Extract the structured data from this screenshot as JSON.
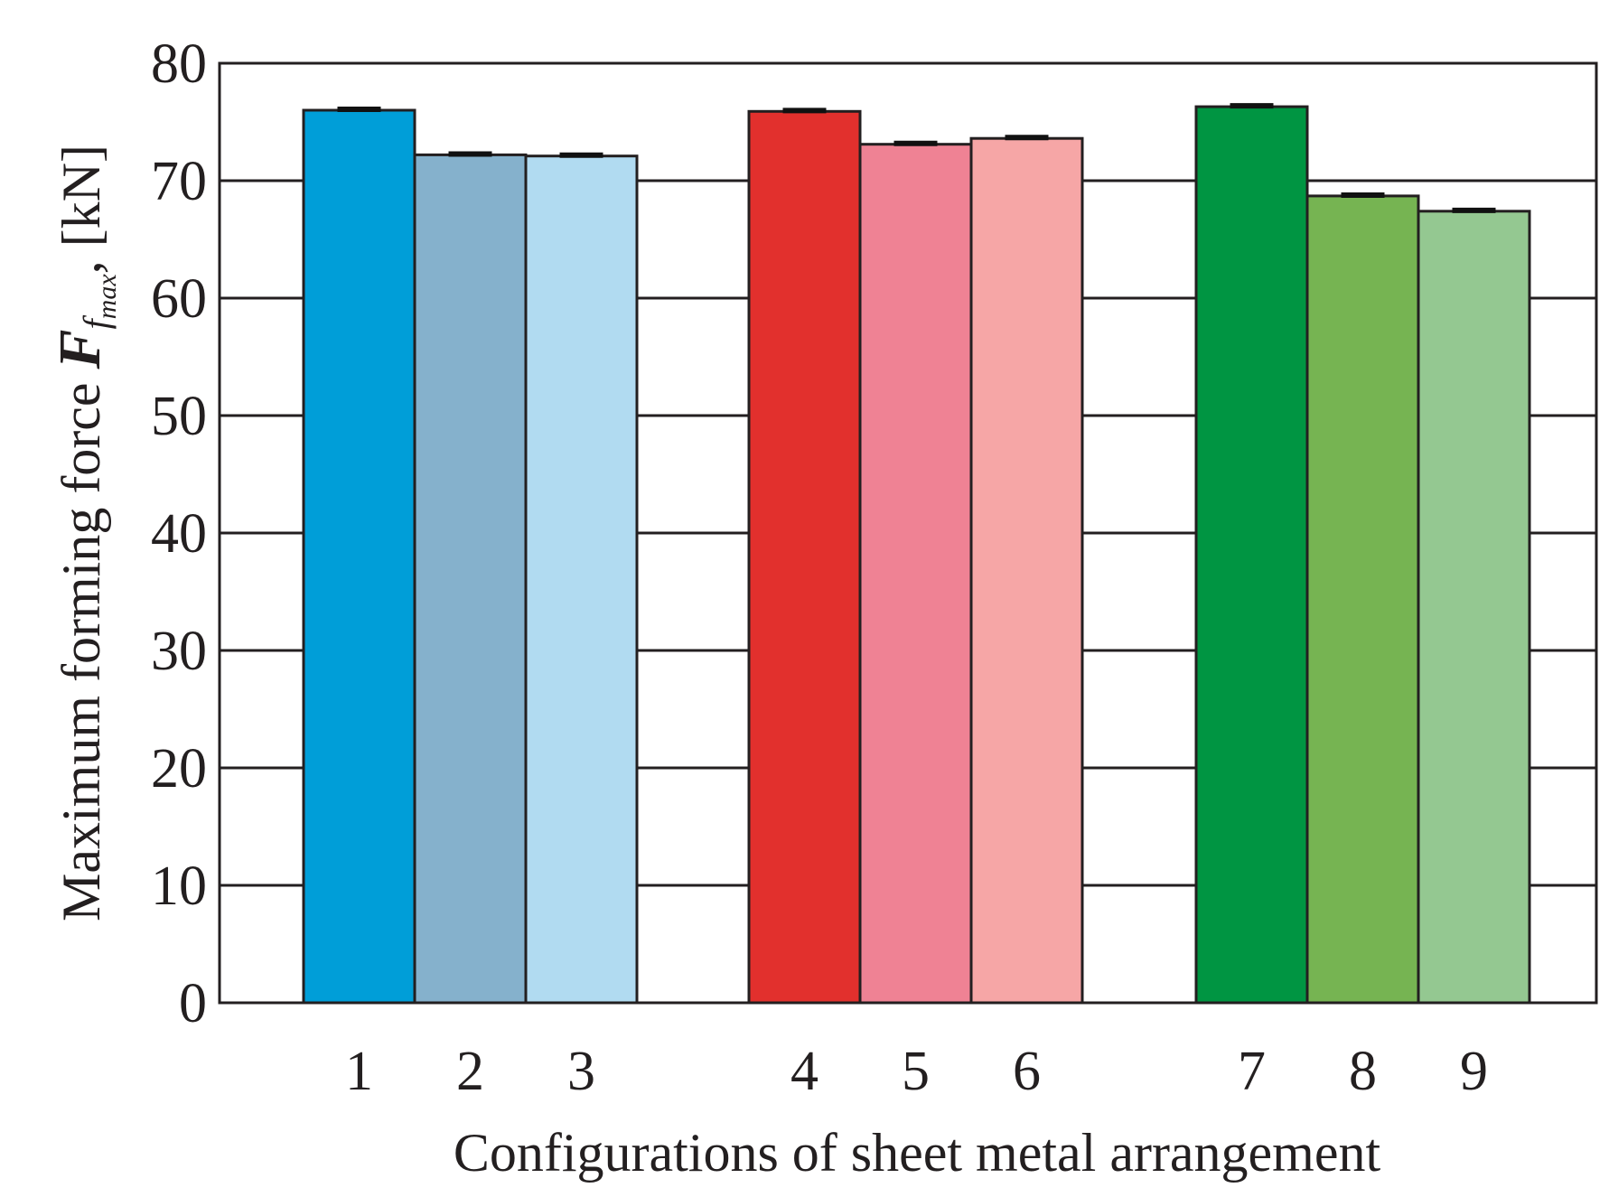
{
  "chart_data": {
    "type": "bar",
    "title": "",
    "xlabel": "Configurations of sheet metal arrangement",
    "ylabel": {
      "prefix": "Maximum forming force ",
      "symbol": "F",
      "subscript_f": "f",
      "subscript_max": "max",
      "suffix": ", [kN]"
    },
    "ylim": [
      0,
      80
    ],
    "yticks": [
      "0",
      "10",
      "20",
      "30",
      "40",
      "50",
      "60",
      "70",
      "80"
    ],
    "grid": true,
    "categories": [
      "1",
      "2",
      "3",
      "4",
      "5",
      "6",
      "7",
      "8",
      "9"
    ],
    "groups": [
      [
        0,
        1,
        2
      ],
      [
        3,
        4,
        5
      ],
      [
        6,
        7,
        8
      ]
    ],
    "values": [
      76.0,
      72.2,
      72.1,
      75.9,
      73.1,
      73.6,
      76.3,
      68.7,
      67.4
    ],
    "errors": [
      0.15,
      0.15,
      0.15,
      0.15,
      0.15,
      0.15,
      0.15,
      0.15,
      0.15
    ],
    "colors": [
      "#009ed8",
      "#85b1cc",
      "#b1dbf1",
      "#e2302d",
      "#ef8294",
      "#f6a6a6",
      "#009542",
      "#76b452",
      "#94c891"
    ]
  }
}
